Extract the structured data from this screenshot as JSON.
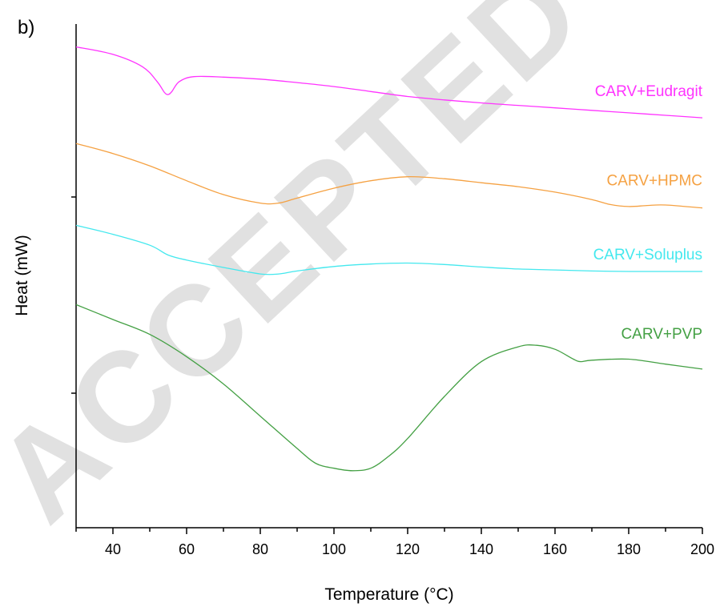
{
  "panel_label": "b)",
  "watermark": "ACCEPTED M",
  "chart_data": {
    "type": "line",
    "xlabel": "Temperature (°C)",
    "ylabel": "Heat (mW)",
    "xlim": [
      30,
      200
    ],
    "ylim": [
      0,
      1
    ],
    "x_ticks": [
      40,
      60,
      80,
      100,
      120,
      140,
      160,
      180,
      200
    ],
    "y_ticks_labeled": false,
    "grid": false,
    "legend": "inline-right",
    "series": [
      {
        "name": "CARV+Eudragit",
        "color": "#ff33ff",
        "x": [
          30,
          40,
          48,
          52,
          54,
          55,
          56,
          58,
          62,
          70,
          80,
          90,
          100,
          110,
          120,
          130,
          140,
          150,
          160,
          170,
          180,
          190,
          200
        ],
        "y": [
          0.97,
          0.955,
          0.93,
          0.9,
          0.878,
          0.874,
          0.88,
          0.9,
          0.91,
          0.909,
          0.905,
          0.898,
          0.89,
          0.88,
          0.87,
          0.863,
          0.857,
          0.852,
          0.847,
          0.842,
          0.837,
          0.832,
          0.827
        ]
      },
      {
        "name": "CARV+HPMC",
        "color": "#f5a142",
        "x": [
          30,
          40,
          50,
          60,
          70,
          80,
          85,
          90,
          100,
          110,
          120,
          130,
          140,
          150,
          160,
          170,
          175,
          180,
          185,
          190,
          200
        ],
        "y": [
          0.775,
          0.755,
          0.73,
          0.7,
          0.672,
          0.655,
          0.655,
          0.665,
          0.685,
          0.7,
          0.708,
          0.704,
          0.696,
          0.688,
          0.677,
          0.662,
          0.652,
          0.648,
          0.65,
          0.651,
          0.645
        ]
      },
      {
        "name": "CARV+Soluplus",
        "color": "#44e8ee",
        "x": [
          30,
          40,
          50,
          55,
          60,
          70,
          80,
          85,
          90,
          100,
          110,
          120,
          130,
          140,
          150,
          160,
          170,
          180,
          190,
          200
        ],
        "y": [
          0.61,
          0.592,
          0.57,
          0.55,
          0.54,
          0.525,
          0.512,
          0.512,
          0.518,
          0.527,
          0.532,
          0.534,
          0.531,
          0.526,
          0.522,
          0.52,
          0.518,
          0.517,
          0.517,
          0.517
        ]
      },
      {
        "name": "CARV+PVP",
        "color": "#44a044",
        "x": [
          30,
          40,
          50,
          60,
          70,
          80,
          90,
          95,
          100,
          105,
          110,
          115,
          120,
          130,
          140,
          150,
          155,
          160,
          165,
          167,
          170,
          180,
          190,
          200
        ],
        "y": [
          0.45,
          0.42,
          0.39,
          0.345,
          0.29,
          0.225,
          0.16,
          0.13,
          0.12,
          0.115,
          0.12,
          0.145,
          0.18,
          0.265,
          0.335,
          0.365,
          0.368,
          0.36,
          0.34,
          0.335,
          0.338,
          0.34,
          0.33,
          0.32
        ]
      }
    ]
  }
}
